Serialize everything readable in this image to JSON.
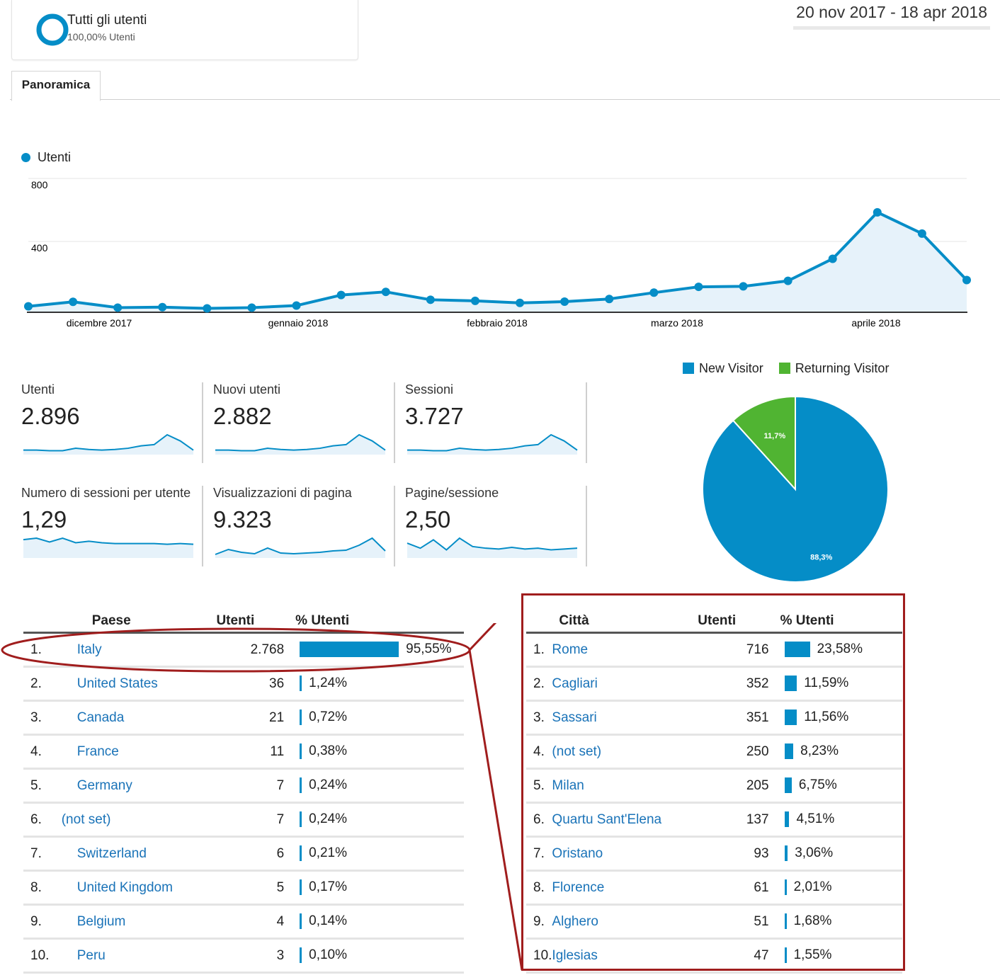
{
  "segment": {
    "title": "Tutti gli utenti",
    "subtitle": "100,00% Utenti"
  },
  "date_range": "20 nov 2017 - 18 apr 2018",
  "tabs": [
    {
      "label": "Panoramica"
    }
  ],
  "chart_data": [
    {
      "type": "line",
      "legend": [
        "Utenti"
      ],
      "y_ticks": [
        "800",
        "400"
      ],
      "x_ticks": [
        "dicembre 2017",
        "gennaio 2018",
        "febbraio 2018",
        "marzo 2018",
        "aprile 2018"
      ],
      "ylim": [
        0,
        800
      ],
      "series": [
        {
          "name": "Utenti",
          "values": [
            33,
            62,
            25,
            28,
            20,
            25,
            38,
            105,
            125,
            75,
            68,
            55,
            63,
            80,
            120,
            157,
            160,
            195,
            335,
            630,
            495,
            200
          ]
        }
      ]
    },
    {
      "type": "pie",
      "legend": [
        "New Visitor",
        "Returning Visitor"
      ],
      "slices": [
        {
          "label": "New Visitor",
          "value": 88.3,
          "text": "88,3%",
          "color": "#058dc7"
        },
        {
          "label": "Returning Visitor",
          "value": 11.7,
          "text": "11,7%",
          "color": "#50b432"
        }
      ]
    }
  ],
  "kpis": [
    {
      "label": "Utenti",
      "value": "2.896",
      "spark": [
        5,
        5,
        4,
        4,
        8,
        6,
        5,
        6,
        8,
        12,
        14,
        30,
        20,
        5
      ]
    },
    {
      "label": "Nuovi utenti",
      "value": "2.882",
      "spark": [
        5,
        5,
        4,
        4,
        8,
        6,
        5,
        6,
        8,
        12,
        14,
        30,
        20,
        5
      ]
    },
    {
      "label": "Sessioni",
      "value": "3.727",
      "spark": [
        5,
        5,
        4,
        4,
        8,
        6,
        5,
        6,
        8,
        12,
        14,
        30,
        20,
        5
      ]
    },
    {
      "label": "Numero di sessioni per utente",
      "value": "1,29",
      "spark": [
        22,
        24,
        19,
        24,
        18,
        20,
        18,
        17,
        17,
        17,
        17,
        16,
        17,
        16
      ]
    },
    {
      "label": "Visualizzazioni di pagina",
      "value": "9.323",
      "spark": [
        3,
        10,
        6,
        4,
        12,
        5,
        4,
        5,
        6,
        8,
        9,
        16,
        26,
        8
      ]
    },
    {
      "label": "Pagine/sessione",
      "value": "2,50",
      "spark": [
        16,
        10,
        20,
        8,
        22,
        12,
        10,
        9,
        11,
        9,
        10,
        8,
        9,
        10
      ]
    }
  ],
  "countries": {
    "headers": {
      "name": "Paese",
      "users": "Utenti",
      "pct": "% Utenti"
    },
    "rows": [
      {
        "rank": "1.",
        "name": "Italy",
        "users": "2.768",
        "pct": "95,55%",
        "share": 95.55
      },
      {
        "rank": "2.",
        "name": "United States",
        "users": "36",
        "pct": "1,24%",
        "share": 1.24
      },
      {
        "rank": "3.",
        "name": "Canada",
        "users": "21",
        "pct": "0,72%",
        "share": 0.72
      },
      {
        "rank": "4.",
        "name": "France",
        "users": "11",
        "pct": "0,38%",
        "share": 0.38
      },
      {
        "rank": "5.",
        "name": "Germany",
        "users": "7",
        "pct": "0,24%",
        "share": 0.24
      },
      {
        "rank": "6.",
        "name": "(not set)",
        "users": "7",
        "pct": "0,24%",
        "share": 0.24
      },
      {
        "rank": "7.",
        "name": "Switzerland",
        "users": "6",
        "pct": "0,21%",
        "share": 0.21
      },
      {
        "rank": "8.",
        "name": "United Kingdom",
        "users": "5",
        "pct": "0,17%",
        "share": 0.17
      },
      {
        "rank": "9.",
        "name": "Belgium",
        "users": "4",
        "pct": "0,14%",
        "share": 0.14
      },
      {
        "rank": "10.",
        "name": "Peru",
        "users": "3",
        "pct": "0,10%",
        "share": 0.1
      }
    ]
  },
  "cities": {
    "headers": {
      "name": "Città",
      "users": "Utenti",
      "pct": "% Utenti"
    },
    "rows": [
      {
        "rank": "1.",
        "name": "Rome",
        "users": "716",
        "pct": "23,58%",
        "share": 23.58
      },
      {
        "rank": "2.",
        "name": "Cagliari",
        "users": "352",
        "pct": "11,59%",
        "share": 11.59
      },
      {
        "rank": "3.",
        "name": "Sassari",
        "users": "351",
        "pct": "11,56%",
        "share": 11.56
      },
      {
        "rank": "4.",
        "name": "(not set)",
        "users": "250",
        "pct": "8,23%",
        "share": 8.23
      },
      {
        "rank": "5.",
        "name": "Milan",
        "users": "205",
        "pct": "6,75%",
        "share": 6.75
      },
      {
        "rank": "6.",
        "name": "Quartu Sant'Elena",
        "users": "137",
        "pct": "4,51%",
        "share": 4.51
      },
      {
        "rank": "7.",
        "name": "Oristano",
        "users": "93",
        "pct": "3,06%",
        "share": 3.06
      },
      {
        "rank": "8.",
        "name": "Florence",
        "users": "61",
        "pct": "2,01%",
        "share": 2.01
      },
      {
        "rank": "9.",
        "name": "Alghero",
        "users": "51",
        "pct": "1,68%",
        "share": 1.68
      },
      {
        "rank": "10.",
        "name": "Iglesias",
        "users": "47",
        "pct": "1,55%",
        "share": 1.55
      }
    ]
  },
  "colors": {
    "accent": "#058dc7",
    "returning": "#50b432",
    "callout": "#a01d1d",
    "link": "#1a73b8"
  }
}
